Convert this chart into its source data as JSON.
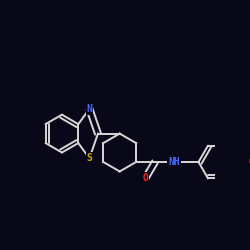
{
  "background_color": "#080818",
  "bond_color": "#d8d8d8",
  "atom_colors": {
    "S": "#ccaa00",
    "N": "#4466ff",
    "O": "#ff2222",
    "C": "#d8d8d8"
  },
  "figsize": [
    2.5,
    2.5
  ],
  "dpi": 100
}
